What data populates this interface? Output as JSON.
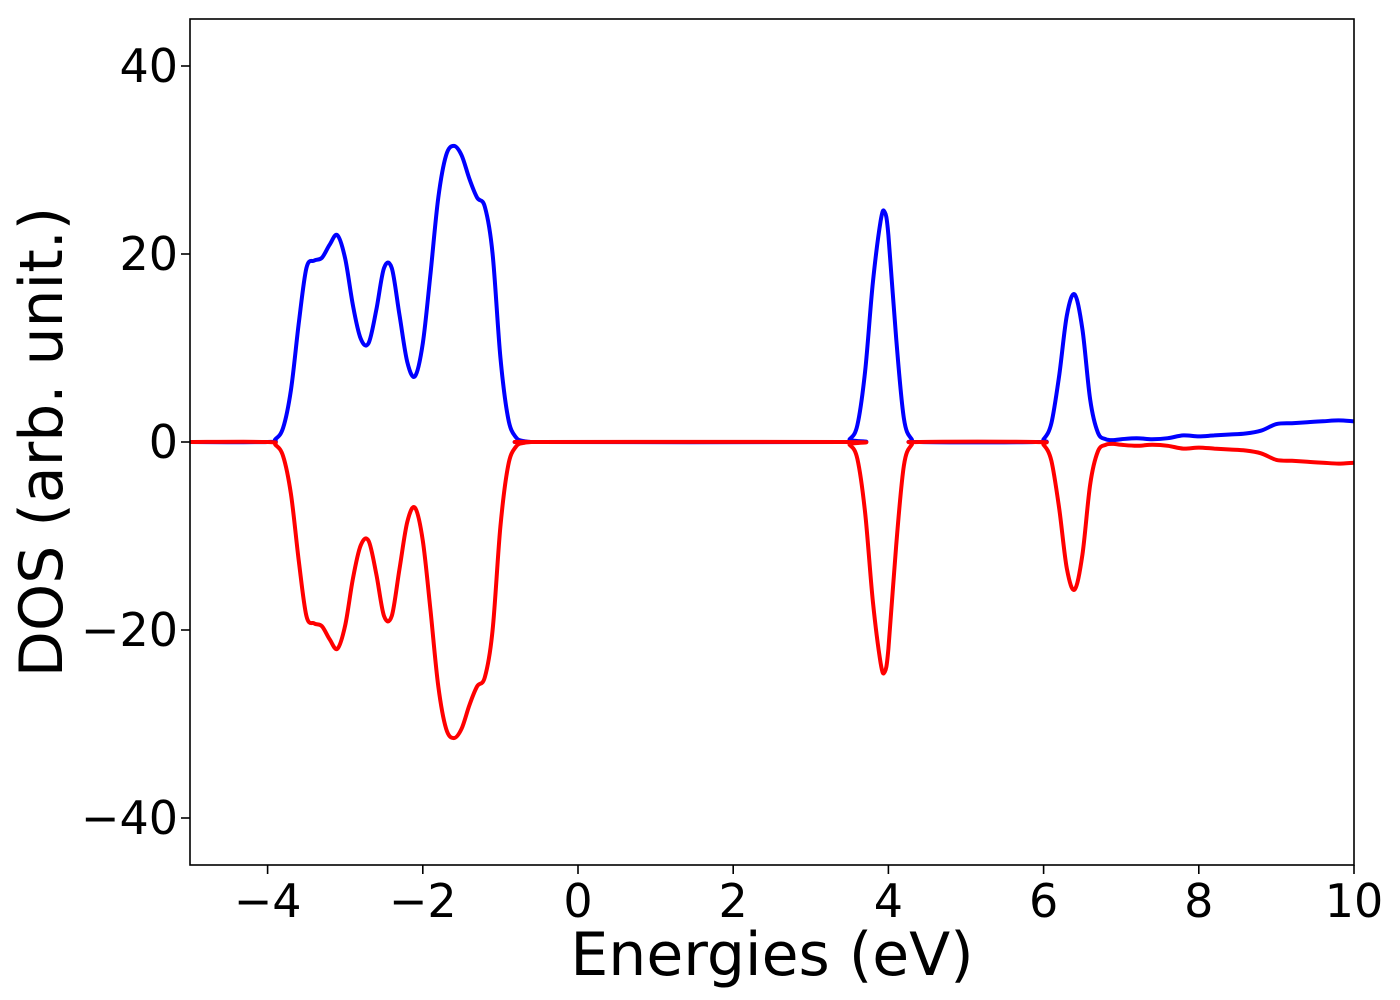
{
  "chart_data": {
    "type": "line",
    "title": "",
    "xlabel": "Energies (eV)",
    "ylabel": "DOS (arb. unit.)",
    "xlim": [
      -5,
      10
    ],
    "ylim": [
      -45,
      45
    ],
    "x_ticks": [
      -4,
      -2,
      0,
      2,
      4,
      6,
      8,
      10
    ],
    "y_ticks": [
      -40,
      -20,
      0,
      20,
      40
    ],
    "x_tick_labels": [
      "−4",
      "−2",
      "0",
      "2",
      "4",
      "6",
      "8",
      "10"
    ],
    "y_tick_labels": [
      "−40",
      "−20",
      "0",
      "20",
      "40"
    ],
    "grid": false,
    "legend": "none",
    "series": [
      {
        "color": "#0000ff",
        "x": [
          -5.0,
          -4.0,
          -3.9,
          -3.8,
          -3.7,
          -3.6,
          -3.5,
          -3.4,
          -3.3,
          -3.2,
          -3.1,
          -3.0,
          -2.9,
          -2.8,
          -2.7,
          -2.6,
          -2.5,
          -2.4,
          -2.3,
          -2.2,
          -2.1,
          -2.0,
          -1.9,
          -1.8,
          -1.7,
          -1.6,
          -1.5,
          -1.4,
          -1.3,
          -1.2,
          -1.1,
          -1.0,
          -0.9,
          -0.8,
          -0.7,
          -0.6,
          -0.5,
          3.4,
          3.5,
          3.6,
          3.7,
          3.8,
          3.9,
          3.95,
          4.0,
          4.1,
          4.2,
          4.3,
          4.4,
          5.9,
          6.0,
          6.1,
          6.2,
          6.3,
          6.4,
          6.5,
          6.6,
          6.7,
          6.8,
          6.9,
          7.0,
          7.2,
          7.4,
          7.6,
          7.8,
          8.0,
          8.2,
          8.4,
          8.6,
          8.8,
          9.0,
          9.2,
          9.4,
          9.6,
          9.8,
          10.0
        ],
        "values": [
          0,
          0,
          0.3,
          1.5,
          5.5,
          12.5,
          18.5,
          19.3,
          19.6,
          21.0,
          22.0,
          19.5,
          14.5,
          11.0,
          10.5,
          14.0,
          18.5,
          18.5,
          13.5,
          8.5,
          7.0,
          10.5,
          18.0,
          26.0,
          30.5,
          31.5,
          30.5,
          28.0,
          26.0,
          25.0,
          20.0,
          9.0,
          2.5,
          0.5,
          0.1,
          0,
          0,
          0,
          0.3,
          1.8,
          7.5,
          17.0,
          23.5,
          24.5,
          22.0,
          11.0,
          2.5,
          0.3,
          0,
          0,
          0.3,
          2.0,
          7.0,
          13.5,
          15.7,
          12.0,
          4.5,
          1.0,
          0.3,
          0.2,
          0.3,
          0.4,
          0.3,
          0.4,
          0.7,
          0.6,
          0.7,
          0.8,
          0.9,
          1.2,
          1.9,
          2.0,
          2.1,
          2.2,
          2.3,
          2.2
        ]
      },
      {
        "color": "#ff0000",
        "x": [
          -5.0,
          -4.0,
          -3.9,
          -3.8,
          -3.7,
          -3.6,
          -3.5,
          -3.4,
          -3.3,
          -3.2,
          -3.1,
          -3.0,
          -2.9,
          -2.8,
          -2.7,
          -2.6,
          -2.5,
          -2.4,
          -2.3,
          -2.2,
          -2.1,
          -2.0,
          -1.9,
          -1.8,
          -1.7,
          -1.6,
          -1.5,
          -1.4,
          -1.3,
          -1.2,
          -1.1,
          -1.0,
          -0.9,
          -0.8,
          -0.7,
          -0.6,
          -0.5,
          3.4,
          3.5,
          3.6,
          3.7,
          3.8,
          3.9,
          3.95,
          4.0,
          4.1,
          4.2,
          4.3,
          4.4,
          5.9,
          6.0,
          6.1,
          6.2,
          6.3,
          6.4,
          6.5,
          6.6,
          6.7,
          6.8,
          6.9,
          7.0,
          7.2,
          7.4,
          7.6,
          7.8,
          8.0,
          8.2,
          8.4,
          8.6,
          8.8,
          9.0,
          9.2,
          9.4,
          9.6,
          9.8,
          10.0
        ],
        "values": [
          0,
          0,
          -0.3,
          -1.5,
          -5.5,
          -12.5,
          -18.5,
          -19.3,
          -19.6,
          -21.0,
          -22.0,
          -19.5,
          -14.5,
          -11.0,
          -10.5,
          -14.0,
          -18.5,
          -18.5,
          -13.5,
          -8.5,
          -7.0,
          -10.5,
          -18.0,
          -26.0,
          -30.5,
          -31.5,
          -30.5,
          -28.0,
          -26.0,
          -25.0,
          -20.0,
          -9.0,
          -2.5,
          -0.5,
          -0.1,
          0,
          0,
          0,
          -0.3,
          -1.8,
          -7.5,
          -17.0,
          -23.5,
          -24.5,
          -22.0,
          -11.0,
          -2.5,
          -0.3,
          0,
          0,
          -0.3,
          -2.0,
          -7.0,
          -13.5,
          -15.7,
          -12.0,
          -4.5,
          -1.0,
          -0.3,
          -0.2,
          -0.3,
          -0.4,
          -0.3,
          -0.4,
          -0.7,
          -0.6,
          -0.7,
          -0.8,
          -0.9,
          -1.2,
          -1.9,
          -2.0,
          -2.1,
          -2.2,
          -2.3,
          -2.2
        ]
      }
    ]
  }
}
